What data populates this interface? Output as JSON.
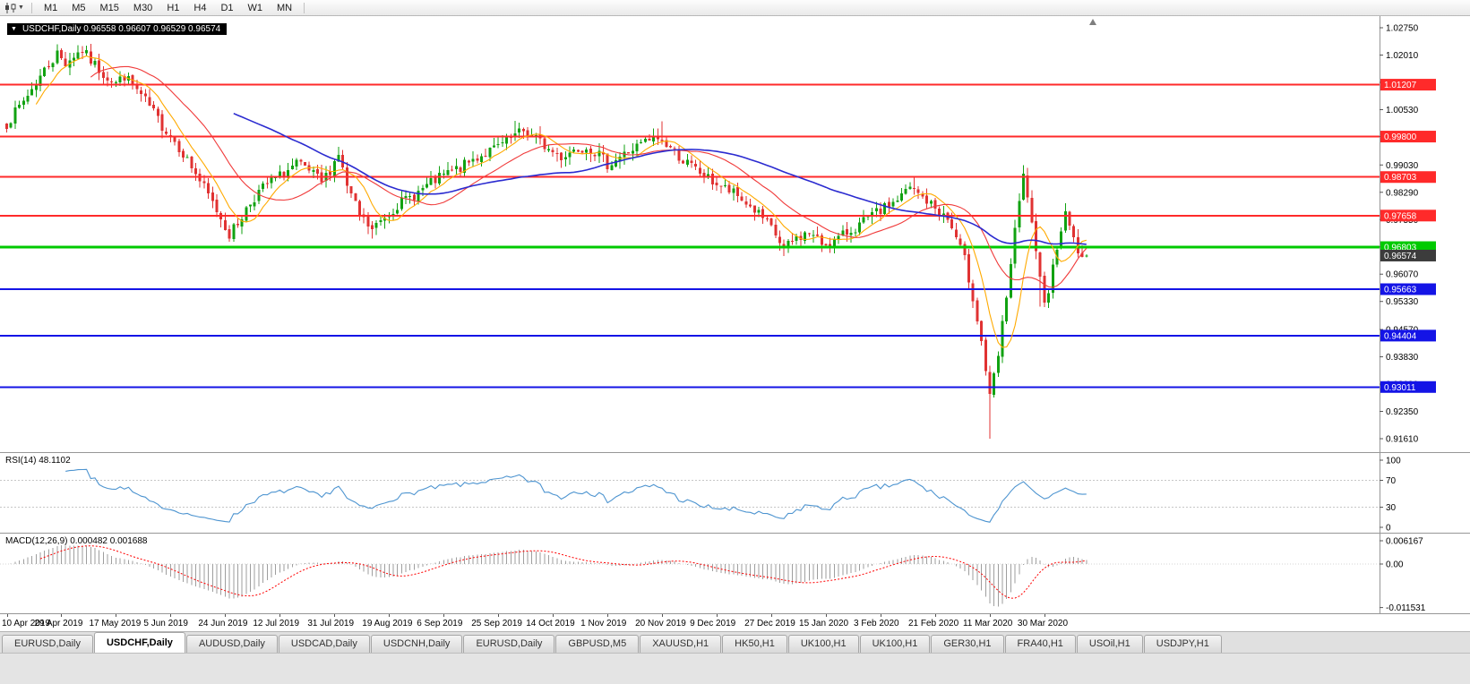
{
  "toolbar": {
    "timeframes": [
      "M1",
      "M5",
      "M15",
      "M30",
      "H1",
      "H4",
      "D1",
      "W1",
      "MN"
    ]
  },
  "chart": {
    "symbol_title": "USDCHF,Daily",
    "ohlc": {
      "open": "0.96558",
      "high": "0.96607",
      "low": "0.96529",
      "close": "0.96574"
    },
    "title_text": "USDCHF,Daily 0.96558 0.96607 0.96529 0.96574"
  },
  "price_axis": {
    "min": 0.9161,
    "max": 1.0275,
    "labels": [
      "1.02750",
      "1.02010",
      "1.01270",
      "1.00530",
      "0.99800",
      "0.99030",
      "0.98290",
      "0.97550",
      "0.96810",
      "0.96070",
      "0.95330",
      "0.94570",
      "0.93830",
      "0.93090",
      "0.92350",
      "0.91610"
    ]
  },
  "hlines": [
    {
      "value": 1.01207,
      "label": "1.01207",
      "color": "#ff2a2a",
      "badge": "#ff2a2a",
      "width": 2
    },
    {
      "value": 0.998,
      "label": "0.99800",
      "color": "#ff2a2a",
      "badge": "#ff2a2a",
      "width": 2
    },
    {
      "value": 0.98703,
      "label": "0.98703",
      "color": "#ff2a2a",
      "badge": "#ff2a2a",
      "width": 2
    },
    {
      "value": 0.97658,
      "label": "0.97658",
      "color": "#ff2a2a",
      "badge": "#ff2a2a",
      "width": 2
    },
    {
      "value": 0.96803,
      "label": "0.96803",
      "color": "#00ca00",
      "badge": "#00ca00",
      "width": 3
    },
    {
      "value": 0.95663,
      "label": "0.95663",
      "color": "#1414e6",
      "badge": "#1414e6",
      "width": 2
    },
    {
      "value": 0.94404,
      "label": "0.94404",
      "color": "#1414e6",
      "badge": "#1414e6",
      "width": 2
    },
    {
      "value": 0.93011,
      "label": "0.93011",
      "color": "#1414e6",
      "badge": "#1414e6",
      "width": 2
    }
  ],
  "current_price": {
    "value": 0.96574,
    "label": "0.96574",
    "badge": "#3c3c3c"
  },
  "indicators": {
    "rsi": {
      "label": "RSI(14) 48.1102",
      "name": "RSI(14)",
      "value": "48.1102",
      "period": 14,
      "axis": [
        "100",
        "70",
        "30",
        "0"
      ],
      "levels": [
        70,
        30
      ],
      "color": "#4d94d0"
    },
    "macd": {
      "label": "MACD(12,26,9) 0.000482 0.001688",
      "name": "MACD(12,26,9)",
      "value_main": "0.000482",
      "value_signal": "0.001688",
      "axis": [
        "0.006167",
        "0.00",
        "-0.011531"
      ],
      "axis_values": [
        0.006167,
        0,
        -0.011531
      ],
      "histogram_color": "#9e9e9e",
      "signal_color": "#ff0000"
    }
  },
  "x_axis": {
    "label_interval": 13,
    "dates": [
      "10 Apr 2019",
      "29 Apr 2019",
      "17 May 2019",
      "5 Jun 2019",
      "24 Jun 2019",
      "12 Jul 2019",
      "31 Jul 2019",
      "19 Aug 2019",
      "6 Sep 2019",
      "25 Sep 2019",
      "14 Oct 2019",
      "1 Nov 2019",
      "20 Nov 2019",
      "9 Dec 2019",
      "27 Dec 2019",
      "15 Jan 2020",
      "3 Feb 2020",
      "21 Feb 2020",
      "11 Mar 2020",
      "30 Mar 2020"
    ]
  },
  "tabs": {
    "active_index": 1,
    "items": [
      "EURUSD,Daily",
      "USDCHF,Daily",
      "AUDUSD,Daily",
      "USDCAD,Daily",
      "USDCNH,Daily",
      "EURUSD,Daily",
      "GBPUSD,M5",
      "XAUUSD,H1",
      "HK50,H1",
      "UK100,H1",
      "UK100,H1",
      "GER30,H1",
      "FRA40,H1",
      "USOil,H1",
      "USDJPY,H1"
    ]
  },
  "chart_data": {
    "type": "candlestick",
    "symbol": "USDCHF",
    "timeframe": "Daily",
    "candle_count": 258,
    "seed": 7,
    "close_noise": 0.003,
    "wick_noise": 0.0022,
    "visible_range": {
      "price_min": 0.9161,
      "price_max": 1.0275,
      "date_start": "10 Apr 2019",
      "date_end": "8 Apr 2020"
    },
    "close_anchors": [
      [
        0,
        1.0015
      ],
      [
        3,
        1.006
      ],
      [
        6,
        1.011
      ],
      [
        9,
        1.016
      ],
      [
        12,
        1.0205
      ],
      [
        14,
        1.018
      ],
      [
        16,
        1.02
      ],
      [
        18,
        1.0215
      ],
      [
        20,
        1.0185
      ],
      [
        23,
        1.015
      ],
      [
        26,
        1.0125
      ],
      [
        28,
        1.0145
      ],
      [
        31,
        1.0105
      ],
      [
        34,
        1.006
      ],
      [
        37,
        1.001
      ],
      [
        39,
        0.9985
      ],
      [
        42,
        0.9935
      ],
      [
        45,
        0.988
      ],
      [
        48,
        0.982
      ],
      [
        51,
        0.976
      ],
      [
        53,
        0.9715
      ],
      [
        55,
        0.9745
      ],
      [
        57,
        0.9785
      ],
      [
        60,
        0.983
      ],
      [
        63,
        0.986
      ],
      [
        66,
        0.988
      ],
      [
        69,
        0.9905
      ],
      [
        72,
        0.9885
      ],
      [
        75,
        0.9855
      ],
      [
        77,
        0.989
      ],
      [
        79,
        0.9935
      ],
      [
        81,
        0.9845
      ],
      [
        84,
        0.9765
      ],
      [
        87,
        0.9725
      ],
      [
        90,
        0.9765
      ],
      [
        93,
        0.9795
      ],
      [
        96,
        0.9815
      ],
      [
        100,
        0.9845
      ],
      [
        104,
        0.9875
      ],
      [
        108,
        0.9895
      ],
      [
        112,
        0.9925
      ],
      [
        116,
        0.9945
      ],
      [
        120,
        0.9975
      ],
      [
        123,
        0.9995
      ],
      [
        126,
        0.9975
      ],
      [
        129,
        0.9945
      ],
      [
        132,
        0.9925
      ],
      [
        135,
        0.9945
      ],
      [
        138,
        0.9955
      ],
      [
        141,
        0.993
      ],
      [
        143,
        0.9905
      ],
      [
        146,
        0.9925
      ],
      [
        149,
        0.9945
      ],
      [
        152,
        0.9965
      ],
      [
        155,
        0.9975
      ],
      [
        158,
        0.995
      ],
      [
        161,
        0.9915
      ],
      [
        164,
        0.989
      ],
      [
        167,
        0.9865
      ],
      [
        170,
        0.9845
      ],
      [
        173,
        0.9825
      ],
      [
        176,
        0.98
      ],
      [
        179,
        0.977
      ],
      [
        182,
        0.973
      ],
      [
        185,
        0.9675
      ],
      [
        188,
        0.9705
      ],
      [
        191,
        0.972
      ],
      [
        194,
        0.969
      ],
      [
        197,
        0.9695
      ],
      [
        200,
        0.972
      ],
      [
        203,
        0.974
      ],
      [
        206,
        0.9765
      ],
      [
        209,
        0.9785
      ],
      [
        212,
        0.981
      ],
      [
        215,
        0.984
      ],
      [
        218,
        0.9815
      ],
      [
        221,
        0.9785
      ],
      [
        224,
        0.9755
      ],
      [
        226,
        0.9705
      ],
      [
        228,
        0.9645
      ],
      [
        230,
        0.9545
      ],
      [
        232,
        0.9425
      ],
      [
        234,
        0.927
      ],
      [
        236,
        0.9385
      ],
      [
        238,
        0.955
      ],
      [
        240,
        0.972
      ],
      [
        241,
        0.98
      ],
      [
        242,
        0.987
      ],
      [
        243,
        0.982
      ],
      [
        244,
        0.9735
      ],
      [
        245,
        0.9655
      ],
      [
        246,
        0.959
      ],
      [
        247,
        0.9545
      ],
      [
        248,
        0.9565
      ],
      [
        249,
        0.9625
      ],
      [
        250,
        0.9685
      ],
      [
        251,
        0.9735
      ],
      [
        252,
        0.9765
      ],
      [
        253,
        0.9745
      ],
      [
        254,
        0.9705
      ],
      [
        255,
        0.967
      ],
      [
        256,
        0.9645
      ],
      [
        257,
        0.96574
      ]
    ],
    "high_overrides": {
      "17": 1.0228,
      "79": 0.9952,
      "121": 1.0022,
      "156": 1.0021,
      "216": 0.9868,
      "242": 0.9903
    },
    "low_overrides": {
      "53": 0.9695,
      "87": 0.9704,
      "185": 0.9656,
      "234": 0.9161,
      "246": 0.9519
    },
    "moving_averages": [
      {
        "period": 8,
        "color": "#ffaa00",
        "width": 1.1
      },
      {
        "period": 21,
        "color": "#f03a3a",
        "width": 1.1
      },
      {
        "period": 55,
        "color": "#2b2bd0",
        "width": 1.6
      }
    ],
    "colors": {
      "up": "#11a211",
      "down": "#e03232"
    }
  }
}
